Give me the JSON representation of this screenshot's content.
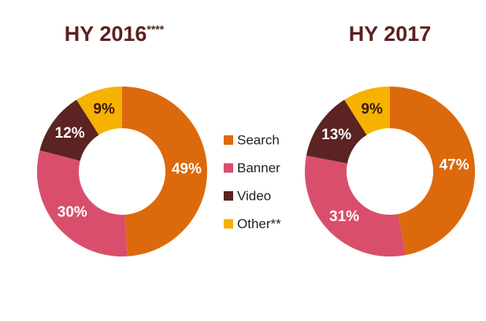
{
  "legend": {
    "labels": [
      "Search",
      "Banner",
      "Video",
      "Other**"
    ],
    "colors": [
      "#dc6a0c",
      "#d94f6b",
      "#5b2321",
      "#f6b200"
    ],
    "label_colors": [
      "#ffffff",
      "#ffffff",
      "#ffffff",
      "#3a1a10"
    ]
  },
  "chart_data": [
    {
      "type": "donut",
      "title": "HY 2016",
      "title_suffix": "****",
      "values": [
        49,
        30,
        12,
        9
      ],
      "value_labels": [
        "49%",
        "30%",
        "12%",
        "9%"
      ]
    },
    {
      "type": "donut",
      "title": "HY 2017",
      "values": [
        47,
        31,
        13,
        9
      ],
      "value_labels": [
        "47%",
        "31%",
        "13%",
        "9%"
      ]
    }
  ]
}
